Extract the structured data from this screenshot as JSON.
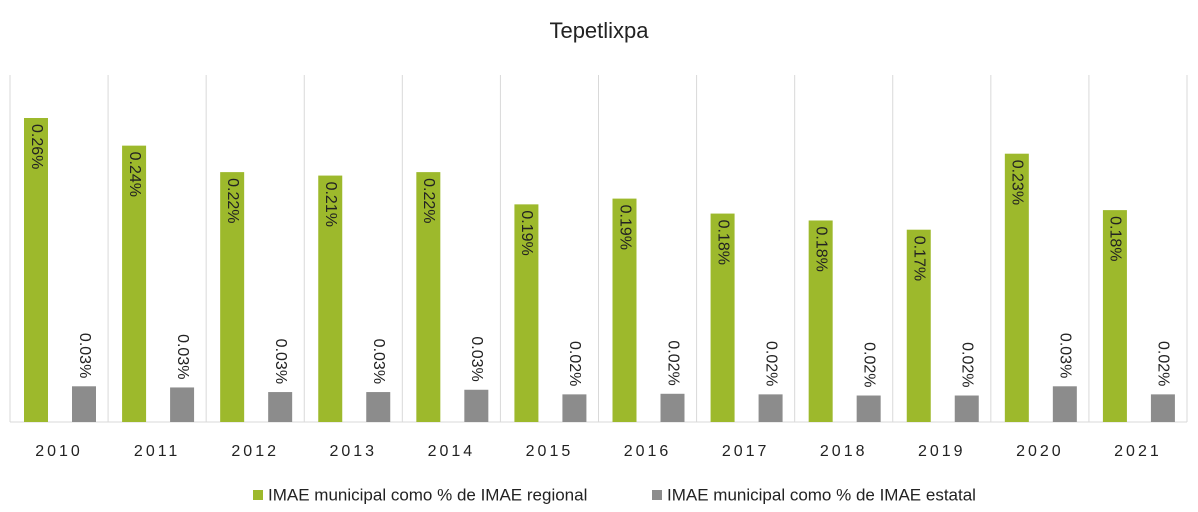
{
  "chart_data": {
    "type": "bar",
    "title": "Tepetlixpa",
    "categories": [
      "2010",
      "2011",
      "2012",
      "2013",
      "2014",
      "2015",
      "2016",
      "2017",
      "2018",
      "2019",
      "2020",
      "2021"
    ],
    "series": [
      {
        "name": "IMAE municipal como % de IMAE regional",
        "color": "#9db92c",
        "values": [
          0.264,
          0.24,
          0.217,
          0.214,
          0.217,
          0.189,
          0.194,
          0.181,
          0.175,
          0.167,
          0.233,
          0.184
        ],
        "value_labels": [
          "0.26%",
          "0.24%",
          "0.22%",
          "0.21%",
          "0.22%",
          "0.19%",
          "0.19%",
          "0.18%",
          "0.18%",
          "0.17%",
          "0.23%",
          "0.18%"
        ]
      },
      {
        "name": "IMAE municipal como % de IMAE estatal",
        "color": "#8c8c8c",
        "values": [
          0.031,
          0.03,
          0.026,
          0.026,
          0.028,
          0.024,
          0.0245,
          0.024,
          0.023,
          0.023,
          0.031,
          0.024
        ],
        "value_labels": [
          "0.03%",
          "0.03%",
          "0.03%",
          "0.03%",
          "0.03%",
          "0.02%",
          "0.02%",
          "0.02%",
          "0.02%",
          "0.02%",
          "0.03%",
          "0.02%"
        ]
      }
    ]
  }
}
